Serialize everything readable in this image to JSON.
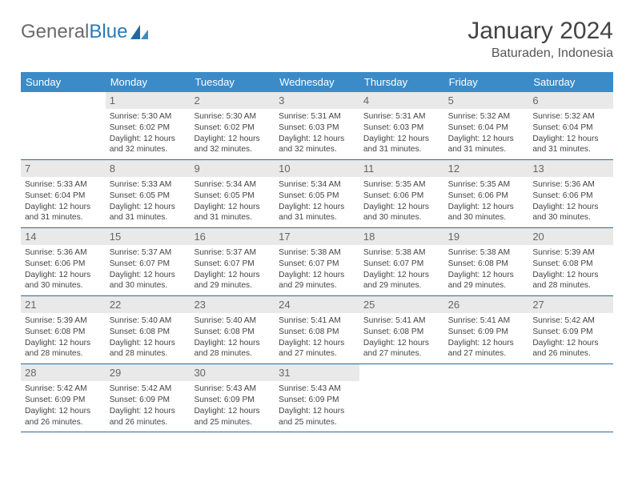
{
  "logo": {
    "text_general": "General",
    "text_blue": "Blue"
  },
  "title": "January 2024",
  "location": "Baturaden, Indonesia",
  "colors": {
    "header_bg": "#3b8bc8",
    "header_text": "#ffffff",
    "daynum_bg": "#e9e9e9",
    "row_border": "#2a6a9c",
    "logo_blue": "#2a7ab8",
    "text": "#444444"
  },
  "dow": [
    "Sunday",
    "Monday",
    "Tuesday",
    "Wednesday",
    "Thursday",
    "Friday",
    "Saturday"
  ],
  "weeks": [
    [
      null,
      {
        "n": "1",
        "sr": "5:30 AM",
        "ss": "6:02 PM",
        "dl": "12 hours and 32 minutes."
      },
      {
        "n": "2",
        "sr": "5:30 AM",
        "ss": "6:02 PM",
        "dl": "12 hours and 32 minutes."
      },
      {
        "n": "3",
        "sr": "5:31 AM",
        "ss": "6:03 PM",
        "dl": "12 hours and 32 minutes."
      },
      {
        "n": "4",
        "sr": "5:31 AM",
        "ss": "6:03 PM",
        "dl": "12 hours and 31 minutes."
      },
      {
        "n": "5",
        "sr": "5:32 AM",
        "ss": "6:04 PM",
        "dl": "12 hours and 31 minutes."
      },
      {
        "n": "6",
        "sr": "5:32 AM",
        "ss": "6:04 PM",
        "dl": "12 hours and 31 minutes."
      }
    ],
    [
      {
        "n": "7",
        "sr": "5:33 AM",
        "ss": "6:04 PM",
        "dl": "12 hours and 31 minutes."
      },
      {
        "n": "8",
        "sr": "5:33 AM",
        "ss": "6:05 PM",
        "dl": "12 hours and 31 minutes."
      },
      {
        "n": "9",
        "sr": "5:34 AM",
        "ss": "6:05 PM",
        "dl": "12 hours and 31 minutes."
      },
      {
        "n": "10",
        "sr": "5:34 AM",
        "ss": "6:05 PM",
        "dl": "12 hours and 31 minutes."
      },
      {
        "n": "11",
        "sr": "5:35 AM",
        "ss": "6:06 PM",
        "dl": "12 hours and 30 minutes."
      },
      {
        "n": "12",
        "sr": "5:35 AM",
        "ss": "6:06 PM",
        "dl": "12 hours and 30 minutes."
      },
      {
        "n": "13",
        "sr": "5:36 AM",
        "ss": "6:06 PM",
        "dl": "12 hours and 30 minutes."
      }
    ],
    [
      {
        "n": "14",
        "sr": "5:36 AM",
        "ss": "6:06 PM",
        "dl": "12 hours and 30 minutes."
      },
      {
        "n": "15",
        "sr": "5:37 AM",
        "ss": "6:07 PM",
        "dl": "12 hours and 30 minutes."
      },
      {
        "n": "16",
        "sr": "5:37 AM",
        "ss": "6:07 PM",
        "dl": "12 hours and 29 minutes."
      },
      {
        "n": "17",
        "sr": "5:38 AM",
        "ss": "6:07 PM",
        "dl": "12 hours and 29 minutes."
      },
      {
        "n": "18",
        "sr": "5:38 AM",
        "ss": "6:07 PM",
        "dl": "12 hours and 29 minutes."
      },
      {
        "n": "19",
        "sr": "5:38 AM",
        "ss": "6:08 PM",
        "dl": "12 hours and 29 minutes."
      },
      {
        "n": "20",
        "sr": "5:39 AM",
        "ss": "6:08 PM",
        "dl": "12 hours and 28 minutes."
      }
    ],
    [
      {
        "n": "21",
        "sr": "5:39 AM",
        "ss": "6:08 PM",
        "dl": "12 hours and 28 minutes."
      },
      {
        "n": "22",
        "sr": "5:40 AM",
        "ss": "6:08 PM",
        "dl": "12 hours and 28 minutes."
      },
      {
        "n": "23",
        "sr": "5:40 AM",
        "ss": "6:08 PM",
        "dl": "12 hours and 28 minutes."
      },
      {
        "n": "24",
        "sr": "5:41 AM",
        "ss": "6:08 PM",
        "dl": "12 hours and 27 minutes."
      },
      {
        "n": "25",
        "sr": "5:41 AM",
        "ss": "6:08 PM",
        "dl": "12 hours and 27 minutes."
      },
      {
        "n": "26",
        "sr": "5:41 AM",
        "ss": "6:09 PM",
        "dl": "12 hours and 27 minutes."
      },
      {
        "n": "27",
        "sr": "5:42 AM",
        "ss": "6:09 PM",
        "dl": "12 hours and 26 minutes."
      }
    ],
    [
      {
        "n": "28",
        "sr": "5:42 AM",
        "ss": "6:09 PM",
        "dl": "12 hours and 26 minutes."
      },
      {
        "n": "29",
        "sr": "5:42 AM",
        "ss": "6:09 PM",
        "dl": "12 hours and 26 minutes."
      },
      {
        "n": "30",
        "sr": "5:43 AM",
        "ss": "6:09 PM",
        "dl": "12 hours and 25 minutes."
      },
      {
        "n": "31",
        "sr": "5:43 AM",
        "ss": "6:09 PM",
        "dl": "12 hours and 25 minutes."
      },
      null,
      null,
      null
    ]
  ],
  "labels": {
    "sunrise": "Sunrise:",
    "sunset": "Sunset:",
    "daylight": "Daylight:"
  }
}
